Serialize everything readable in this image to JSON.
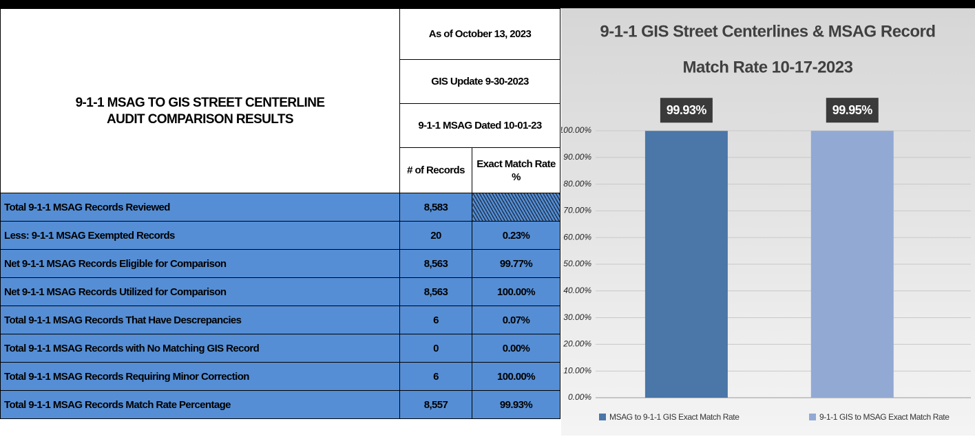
{
  "table": {
    "title_lines": [
      "9-1-1 MSAG TO GIS STREET CENTERLINE",
      "AUDIT COMPARISON RESULTS"
    ],
    "header_notes": [
      "As of October 13, 2023",
      "GIS Update 9-30-2023",
      "9-1-1 MSAG Dated 10-01-23"
    ],
    "columns": [
      "# of Records",
      "Exact Match Rate %"
    ],
    "rows": [
      [
        "Total 9-1-1 MSAG Records Reviewed",
        "8,583",
        null
      ],
      [
        "Less:  9-1-1 MSAG Exempted Records",
        "20",
        "0.23%"
      ],
      [
        "Net 9-1-1 MSAG Records Eligible for Comparison",
        "8,563",
        "99.77%"
      ],
      [
        "Net 9-1-1 MSAG Records Utilized for Comparison",
        "8,563",
        "100.00%"
      ],
      [
        "Total 9-1-1 MSAG Records That Have Descrepancies",
        "6",
        "0.07%"
      ],
      [
        "Total 9-1-1 MSAG Records with No Matching GIS Record",
        "0",
        "0.00%"
      ],
      [
        "Total 9-1-1 MSAG Records Requiring Minor Correction",
        "6",
        "100.00%"
      ],
      [
        "Total 9-1-1 MSAG Records Match Rate Percentage",
        "8,557",
        "99.93%"
      ]
    ]
  },
  "chart_data": {
    "type": "bar",
    "title_lines": [
      "9-1-1 GIS Street Centerlines & MSAG Record",
      "Match Rate 10-17-2023"
    ],
    "categories": [
      null
    ],
    "series": [
      {
        "name": "MSAG to 9-1-1 GIS Exact Match Rate",
        "color": "#4a76a8",
        "values": [
          99.93
        ],
        "value_labels": [
          "99.93%"
        ]
      },
      {
        "name": "9-1-1 GIS to MSAG Exact Match Rate",
        "color": "#92a9d4",
        "values": [
          99.95
        ],
        "value_labels": [
          "99.95%"
        ]
      }
    ],
    "ylim": [
      0,
      100
    ],
    "yticks": [
      {
        "value": 0,
        "label": "0.00%"
      },
      {
        "value": 10,
        "label": "10.00%"
      },
      {
        "value": 20,
        "label": "20.00%"
      },
      {
        "value": 30,
        "label": "30.00%"
      },
      {
        "value": 40,
        "label": "40.00%"
      },
      {
        "value": 50,
        "label": "50.00%"
      },
      {
        "value": 60,
        "label": "60.00%"
      },
      {
        "value": 70,
        "label": "70.00%"
      },
      {
        "value": 80,
        "label": "80.00%"
      },
      {
        "value": 90,
        "label": "90.00%"
      },
      {
        "value": 100,
        "label": "100.00%"
      }
    ],
    "grid": true,
    "legend": "bottom"
  }
}
